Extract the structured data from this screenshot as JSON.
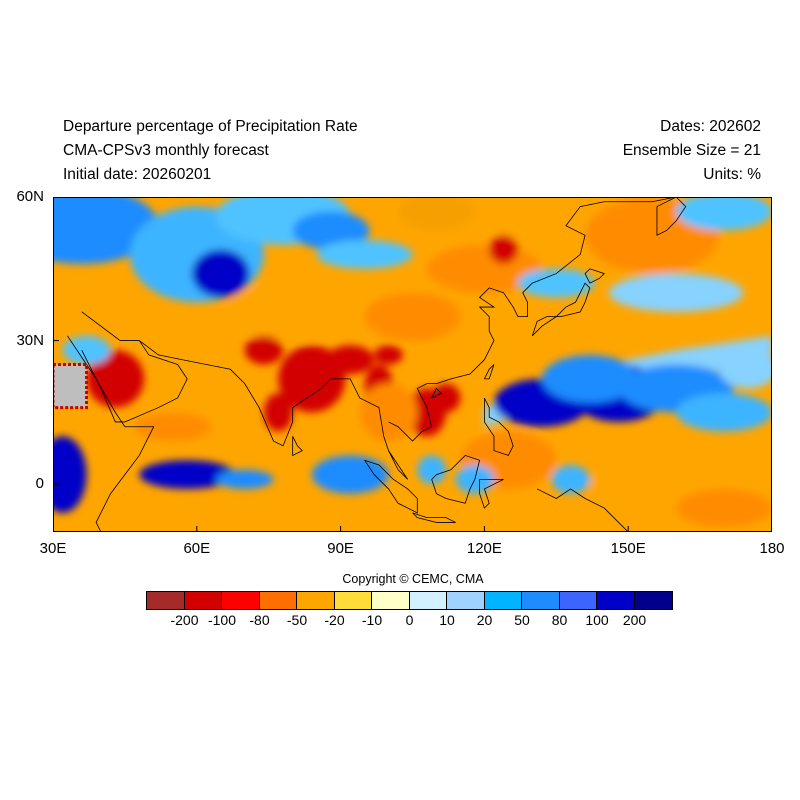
{
  "header": {
    "title_line1": "Departure percentage of Precipitation Rate",
    "title_line2": "CMA-CPSv3 monthly forecast",
    "title_line3": "Initial date: 20260201",
    "right_line1": "Dates: 202602",
    "right_line2": "Ensemble Size = 21",
    "right_line3": "Units: %"
  },
  "map": {
    "lon_range": [
      30,
      180
    ],
    "lat_range": [
      -10,
      60
    ],
    "x_tick_labels": [
      "30E",
      "60E",
      "90E",
      "120E",
      "150E",
      "180"
    ],
    "y_tick_labels": [
      "60N",
      "30N",
      "0"
    ],
    "blobs": [
      {
        "lon": 36,
        "lat": 54,
        "rx": 16,
        "ry": 8,
        "color": "#1e8cff"
      },
      {
        "lon": 60,
        "lat": 48,
        "rx": 14,
        "ry": 10,
        "color": "#3cb4ff"
      },
      {
        "lon": 65,
        "lat": 44,
        "rx": 6,
        "ry": 5,
        "color": "#0000c8"
      },
      {
        "lon": 78,
        "lat": 56,
        "rx": 14,
        "ry": 6,
        "color": "#50c3ff"
      },
      {
        "lon": 88,
        "lat": 53,
        "rx": 8,
        "ry": 4,
        "color": "#1e8cff"
      },
      {
        "lon": 110,
        "lat": 57,
        "rx": 8,
        "ry": 4,
        "color": "#f5a000"
      },
      {
        "lon": 130,
        "lat": 55,
        "rx": 10,
        "ry": 4,
        "color": "#ffa500"
      },
      {
        "lon": 155,
        "lat": 52,
        "rx": 14,
        "ry": 8,
        "color": "#ff8c00"
      },
      {
        "lon": 170,
        "lat": 57,
        "rx": 10,
        "ry": 4,
        "color": "#50c3ff"
      },
      {
        "lon": 95,
        "lat": 48,
        "rx": 10,
        "ry": 3,
        "color": "#50c3ff"
      },
      {
        "lon": 120,
        "lat": 45,
        "rx": 12,
        "ry": 5,
        "color": "#ff8c00"
      },
      {
        "lon": 124,
        "lat": 49,
        "rx": 3,
        "ry": 3,
        "color": "#d20000"
      },
      {
        "lon": 135,
        "lat": 42,
        "rx": 8,
        "ry": 3,
        "color": "#50c3ff"
      },
      {
        "lon": 160,
        "lat": 40,
        "rx": 14,
        "ry": 4,
        "color": "#87d2ff"
      },
      {
        "lon": 80,
        "lat": 36,
        "rx": 14,
        "ry": 6,
        "color": "#ffa500"
      },
      {
        "lon": 105,
        "lat": 35,
        "rx": 10,
        "ry": 5,
        "color": "#ff8c00"
      },
      {
        "lon": 43,
        "lat": 22,
        "rx": 6,
        "ry": 6,
        "color": "#d20000"
      },
      {
        "lon": 37,
        "lat": 28,
        "rx": 5,
        "ry": 3,
        "color": "#50c3ff"
      },
      {
        "lon": 74,
        "lat": 28,
        "rx": 4,
        "ry": 3,
        "color": "#d20000"
      },
      {
        "lon": 84,
        "lat": 22,
        "rx": 7,
        "ry": 7,
        "color": "#d20000"
      },
      {
        "lon": 77,
        "lat": 15,
        "rx": 3,
        "ry": 4,
        "color": "#d20000"
      },
      {
        "lon": 92,
        "lat": 26,
        "rx": 5,
        "ry": 3,
        "color": "#d20000"
      },
      {
        "lon": 98,
        "lat": 20,
        "rx": 3,
        "ry": 5,
        "color": "#d20000"
      },
      {
        "lon": 108,
        "lat": 15,
        "rx": 4,
        "ry": 5,
        "color": "#d20000"
      },
      {
        "lon": 112,
        "lat": 18,
        "rx": 3,
        "ry": 3,
        "color": "#d20000"
      },
      {
        "lon": 100,
        "lat": 27,
        "rx": 3,
        "ry": 2,
        "color": "#d20000"
      },
      {
        "lon": 60,
        "lat": 16,
        "rx": 10,
        "ry": 4,
        "color": "#ffa500"
      },
      {
        "lon": 55,
        "lat": 12,
        "rx": 8,
        "ry": 3,
        "color": "#ff8c00"
      },
      {
        "lon": 32,
        "lat": 2,
        "rx": 5,
        "ry": 8,
        "color": "#0000c8"
      },
      {
        "lon": 58,
        "lat": 2,
        "rx": 10,
        "ry": 3,
        "color": "#0000c8"
      },
      {
        "lon": 70,
        "lat": 1,
        "rx": 6,
        "ry": 2,
        "color": "#1e8cff"
      },
      {
        "lon": 92,
        "lat": 2,
        "rx": 8,
        "ry": 4,
        "color": "#1e8cff"
      },
      {
        "lon": 100,
        "lat": 15,
        "rx": 6,
        "ry": 6,
        "color": "#ff8c00"
      },
      {
        "lon": 132,
        "lat": 17,
        "rx": 10,
        "ry": 5,
        "color": "#0000c8"
      },
      {
        "lon": 148,
        "lat": 19,
        "rx": 10,
        "ry": 6,
        "color": "#0000c8"
      },
      {
        "lon": 142,
        "lat": 22,
        "rx": 10,
        "ry": 5,
        "color": "#1e8cff"
      },
      {
        "lon": 160,
        "lat": 20,
        "rx": 12,
        "ry": 5,
        "color": "#1e8cff"
      },
      {
        "lon": 170,
        "lat": 15,
        "rx": 10,
        "ry": 4,
        "color": "#3cb4ff"
      },
      {
        "lon": 175,
        "lat": 24,
        "rx": 6,
        "ry": 4,
        "color": "#87d2ff"
      },
      {
        "lon": 125,
        "lat": 5,
        "rx": 10,
        "ry": 6,
        "color": "#ff8c00"
      },
      {
        "lon": 160,
        "lat": 0,
        "rx": 18,
        "ry": 5,
        "color": "#ffa500"
      },
      {
        "lon": 170,
        "lat": -5,
        "rx": 10,
        "ry": 4,
        "color": "#ff8c00"
      },
      {
        "lon": 138,
        "lat": 1,
        "rx": 4,
        "ry": 3,
        "color": "#3cb4ff"
      },
      {
        "lon": 118,
        "lat": 1,
        "rx": 4,
        "ry": 3,
        "color": "#3cb4ff"
      },
      {
        "lon": 109,
        "lat": 3,
        "rx": 3,
        "ry": 3,
        "color": "#3cb4ff"
      }
    ],
    "bands": [
      {
        "points": [
          [
            120,
            16
          ],
          [
            140,
            24
          ],
          [
            160,
            28
          ],
          [
            180,
            31
          ],
          [
            180,
            26
          ],
          [
            160,
            22
          ],
          [
            140,
            18
          ],
          [
            120,
            12
          ]
        ],
        "color": "#87d2ff"
      }
    ],
    "colors": {
      "base_orange": "#ffa500",
      "land_outline": "#000000",
      "missing": "#bebebe",
      "missing_border": "#c80000"
    }
  },
  "colorbar": {
    "colors": [
      "#a52a2a",
      "#d20000",
      "#ff0000",
      "#ff6e00",
      "#ffa500",
      "#ffdc37",
      "#ffffc8",
      "#d2f0ff",
      "#a0d2ff",
      "#00b4ff",
      "#1e8cff",
      "#3c64ff",
      "#0000c8",
      "#00008c"
    ],
    "labels": [
      "-200",
      "-100",
      "-80",
      "-50",
      "-20",
      "-10",
      "0",
      "10",
      "20",
      "50",
      "80",
      "100",
      "200"
    ]
  },
  "copyright": "Copyright © CEMC, CMA"
}
